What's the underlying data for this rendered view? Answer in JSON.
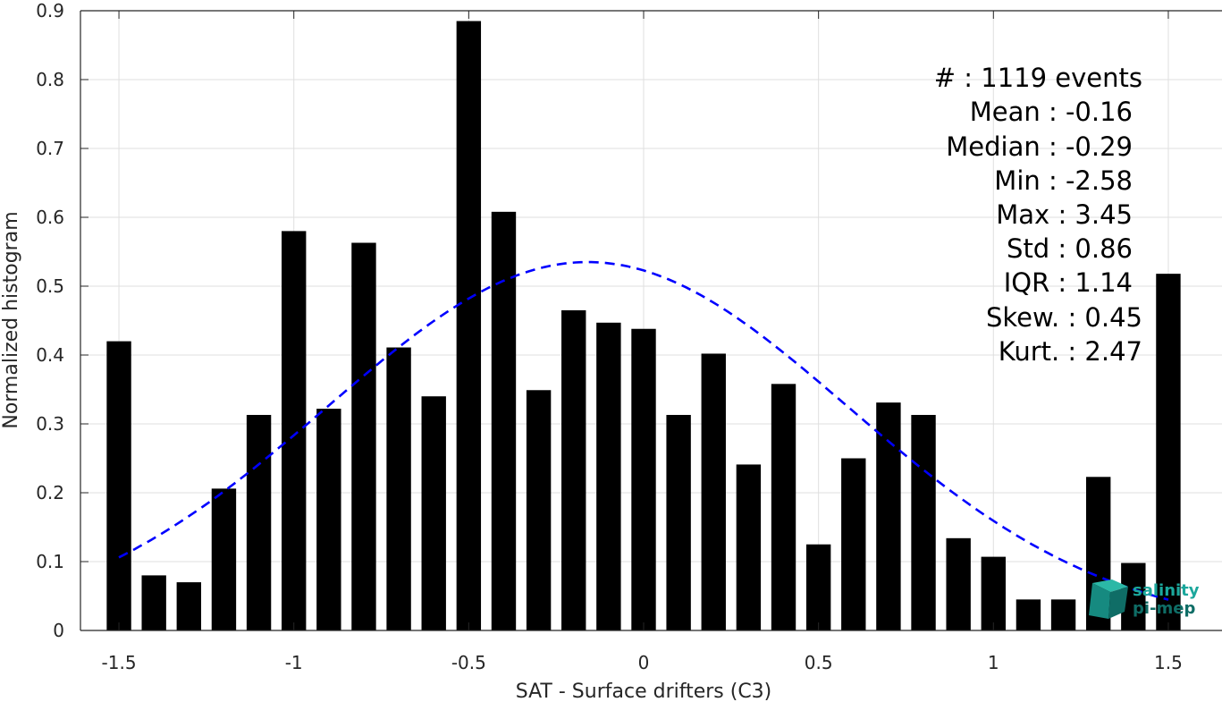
{
  "chart_data": {
    "type": "bar",
    "xlabel": "SAT - Surface drifters (C3)",
    "ylabel": "Normalized histogram",
    "xlim": [
      -1.55,
      1.6
    ],
    "ylim": [
      0,
      0.9
    ],
    "x_ticks": [
      -1.5,
      -1,
      -0.5,
      0,
      0.5,
      1,
      1.5
    ],
    "x_tick_labels": [
      "-1.5",
      "-1",
      "-0.5",
      "0",
      "0.5",
      "1",
      "1.5"
    ],
    "y_ticks": [
      0,
      0.1,
      0.2,
      0.3,
      0.4,
      0.5,
      0.6,
      0.7,
      0.8,
      0.9
    ],
    "y_tick_labels": [
      "0",
      "0.1",
      "0.2",
      "0.3",
      "0.4",
      "0.5",
      "0.6",
      "0.7",
      "0.8",
      "0.9"
    ],
    "grid": true,
    "bin_width": 0.1,
    "bar_color": "#000000",
    "bins": [
      {
        "x": -1.5,
        "y": 0.42
      },
      {
        "x": -1.4,
        "y": 0.08
      },
      {
        "x": -1.3,
        "y": 0.07
      },
      {
        "x": -1.2,
        "y": 0.206
      },
      {
        "x": -1.1,
        "y": 0.313
      },
      {
        "x": -1.0,
        "y": 0.58
      },
      {
        "x": -0.9,
        "y": 0.322
      },
      {
        "x": -0.8,
        "y": 0.563
      },
      {
        "x": -0.7,
        "y": 0.411
      },
      {
        "x": -0.6,
        "y": 0.34
      },
      {
        "x": -0.5,
        "y": 0.885
      },
      {
        "x": -0.4,
        "y": 0.608
      },
      {
        "x": -0.3,
        "y": 0.349
      },
      {
        "x": -0.2,
        "y": 0.465
      },
      {
        "x": -0.1,
        "y": 0.447
      },
      {
        "x": 0.0,
        "y": 0.438
      },
      {
        "x": 0.1,
        "y": 0.313
      },
      {
        "x": 0.2,
        "y": 0.402
      },
      {
        "x": 0.3,
        "y": 0.241
      },
      {
        "x": 0.4,
        "y": 0.358
      },
      {
        "x": 0.5,
        "y": 0.125
      },
      {
        "x": 0.6,
        "y": 0.25
      },
      {
        "x": 0.7,
        "y": 0.331
      },
      {
        "x": 0.8,
        "y": 0.313
      },
      {
        "x": 0.9,
        "y": 0.134
      },
      {
        "x": 1.0,
        "y": 0.107
      },
      {
        "x": 1.1,
        "y": 0.045
      },
      {
        "x": 1.2,
        "y": 0.045
      },
      {
        "x": 1.3,
        "y": 0.223
      },
      {
        "x": 1.4,
        "y": 0.098
      },
      {
        "x": 1.5,
        "y": 0.518
      }
    ],
    "fit_curve": {
      "type": "normal",
      "mean": -0.16,
      "std": 0.745,
      "peak": 0.535,
      "x_range": [
        -1.5,
        1.5
      ],
      "color": "#0000ff",
      "style": "dashed"
    },
    "stats": [
      {
        "label": "#  : 1119 events",
        "key": "count"
      },
      {
        "label": "Mean : -0.16",
        "key": "mean"
      },
      {
        "label": "Median : -0.29",
        "key": "median"
      },
      {
        "label": "Min : -2.58",
        "key": "min"
      },
      {
        "label": "Max : 3.45",
        "key": "max"
      },
      {
        "label": "Std : 0.86",
        "key": "std"
      },
      {
        "label": "IQR : 1.14",
        "key": "iqr"
      },
      {
        "label": "Skew. : 0.45",
        "key": "skew"
      },
      {
        "label": "Kurt. : 2.47",
        "key": "kurt"
      }
    ]
  },
  "logo": {
    "line1": "salinity",
    "line2": "pi-mep",
    "color": "#1ba79c"
  }
}
